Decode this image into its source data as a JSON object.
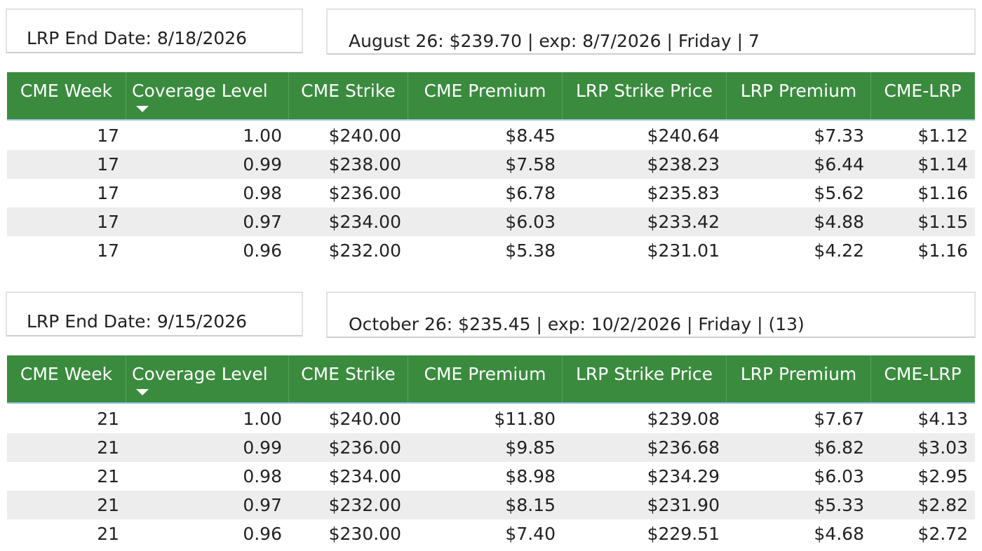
{
  "sections": [
    {
      "end_date": "LRP End Date: 8/18/2026",
      "contract": "August 26: $239.70 | exp: 8/7/2026 | Friday | 7",
      "table": {
        "columns": [
          "CME Week",
          "Coverage Level",
          "CME Strike",
          "CME Premium",
          "LRP Strike Price",
          "LRP Premium",
          "CME-LRP"
        ],
        "rows": [
          [
            "17",
            "1.00",
            "$240.00",
            "$8.45",
            "$240.64",
            "$7.33",
            "$1.12"
          ],
          [
            "17",
            "0.99",
            "$238.00",
            "$7.58",
            "$238.23",
            "$6.44",
            "$1.14"
          ],
          [
            "17",
            "0.98",
            "$236.00",
            "$6.78",
            "$235.83",
            "$5.62",
            "$1.16"
          ],
          [
            "17",
            "0.97",
            "$234.00",
            "$6.03",
            "$233.42",
            "$4.88",
            "$1.15"
          ],
          [
            "17",
            "0.96",
            "$232.00",
            "$5.38",
            "$231.01",
            "$4.22",
            "$1.16"
          ]
        ]
      }
    },
    {
      "end_date": "LRP End Date: 9/15/2026",
      "contract": "October 26: $235.45 | exp: 10/2/2026 | Friday | (13)",
      "table": {
        "columns": [
          "CME Week",
          "Coverage Level",
          "CME Strike",
          "CME Premium",
          "LRP Strike Price",
          "LRP Premium",
          "CME-LRP"
        ],
        "rows": [
          [
            "21",
            "1.00",
            "$240.00",
            "$11.80",
            "$239.08",
            "$7.67",
            "$4.13"
          ],
          [
            "21",
            "0.99",
            "$236.00",
            "$9.85",
            "$236.68",
            "$6.82",
            "$3.03"
          ],
          [
            "21",
            "0.98",
            "$234.00",
            "$8.98",
            "$234.29",
            "$6.03",
            "$2.95"
          ],
          [
            "21",
            "0.97",
            "$232.00",
            "$8.15",
            "$231.90",
            "$5.33",
            "$2.82"
          ],
          [
            "21",
            "0.96",
            "$230.00",
            "$7.40",
            "$229.51",
            "$4.68",
            "$2.72"
          ]
        ]
      }
    }
  ]
}
